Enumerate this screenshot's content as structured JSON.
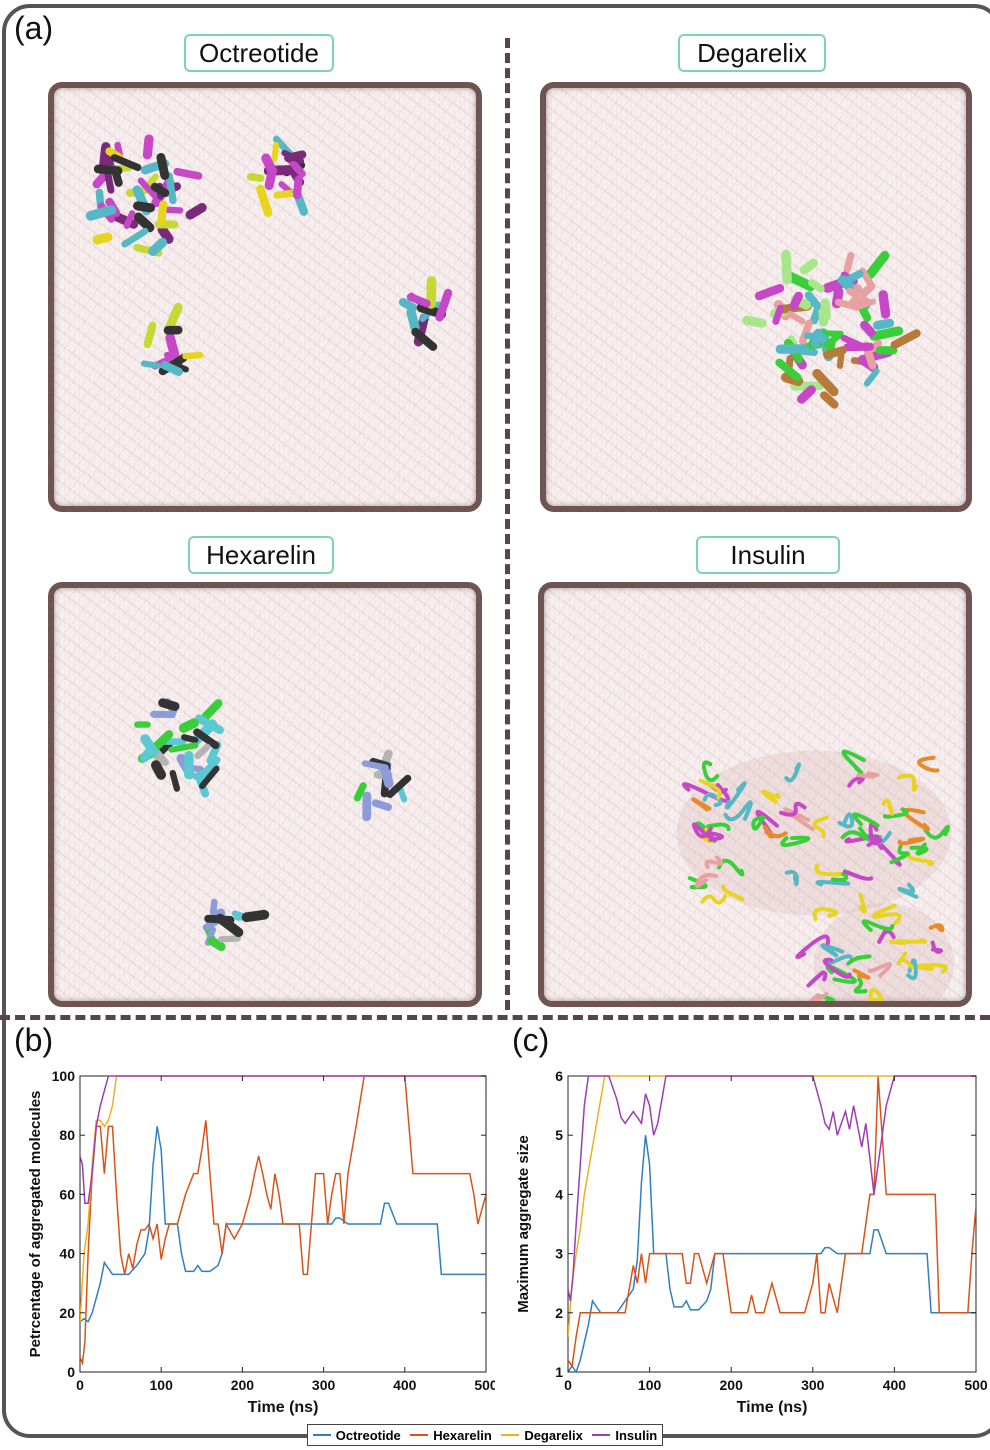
{
  "panel_letters": {
    "a": "(a)",
    "b": "(b)",
    "c": "(c)"
  },
  "simulations": [
    {
      "label": "Octreotide",
      "colors": [
        "#c6d832",
        "#7a2a7a",
        "#e6d420",
        "#55b8c4",
        "#333333",
        "#c648c6"
      ]
    },
    {
      "label": "Degarelix",
      "colors": [
        "#a8e68a",
        "#e8a1a1",
        "#55b8c4",
        "#c648c6",
        "#b87a3a",
        "#3acf3a"
      ]
    },
    {
      "label": "Hexarelin",
      "colors": [
        "#5cc8d4",
        "#3acf3a",
        "#333333",
        "#b4b4b4",
        "#8c9cd8"
      ]
    },
    {
      "label": "Insulin",
      "colors": [
        "#e6d420",
        "#3acf3a",
        "#e8a1a1",
        "#c648c6",
        "#e88a2a",
        "#55b8c4"
      ]
    }
  ],
  "legend": [
    {
      "name": "Octreotide",
      "color": "#2F7FC1"
    },
    {
      "name": "Hexarelin",
      "color": "#D95319"
    },
    {
      "name": "Degarelix",
      "color": "#EDB120"
    },
    {
      "name": "Insulin",
      "color": "#9B3EAF"
    }
  ],
  "chart_data": [
    {
      "type": "line",
      "panel": "(b)",
      "xlabel": "Time (ns)",
      "ylabel": "Petrcentage of aggregated molecules",
      "xlim": [
        0,
        500
      ],
      "ylim": [
        0,
        100
      ],
      "xticks": [
        "0",
        "100",
        "200",
        "300",
        "400",
        "500"
      ],
      "yticks": [
        "0",
        "20",
        "40",
        "60",
        "80",
        "100"
      ],
      "series": [
        {
          "name": "Octreotide",
          "color": "#2F7FC1",
          "x": [
            0,
            5,
            10,
            15,
            20,
            25,
            30,
            35,
            40,
            50,
            60,
            70,
            80,
            85,
            90,
            95,
            100,
            105,
            110,
            120,
            125,
            130,
            140,
            145,
            150,
            160,
            170,
            175,
            180,
            200,
            250,
            300,
            310,
            315,
            320,
            330,
            340,
            360,
            370,
            375,
            380,
            390,
            400,
            420,
            440,
            445,
            460,
            480,
            500
          ],
          "y": [
            17,
            18,
            17,
            20,
            25,
            30,
            37,
            35,
            33,
            33,
            33,
            36,
            40,
            48,
            70,
            83,
            75,
            50,
            50,
            50,
            40,
            34,
            34,
            36,
            34,
            34,
            36,
            40,
            50,
            50,
            50,
            50,
            50,
            52,
            52,
            50,
            50,
            50,
            50,
            57,
            57,
            50,
            50,
            50,
            50,
            33,
            33,
            33,
            33
          ]
        },
        {
          "name": "Hexarelin",
          "color": "#D95319",
          "x": [
            0,
            3,
            6,
            10,
            15,
            20,
            25,
            30,
            35,
            40,
            45,
            50,
            55,
            60,
            65,
            70,
            75,
            80,
            85,
            90,
            95,
            100,
            105,
            110,
            115,
            120,
            130,
            140,
            145,
            150,
            155,
            160,
            165,
            170,
            175,
            180,
            190,
            200,
            210,
            215,
            220,
            225,
            230,
            235,
            240,
            245,
            250,
            260,
            270,
            275,
            280,
            285,
            290,
            300,
            305,
            310,
            315,
            320,
            325,
            330,
            340,
            350,
            360,
            370,
            380,
            385,
            390,
            395,
            400,
            410,
            420,
            440,
            460,
            475,
            480,
            485,
            490,
            500
          ],
          "y": [
            5,
            3,
            10,
            40,
            67,
            83,
            83,
            67,
            83,
            83,
            60,
            40,
            33,
            40,
            35,
            43,
            48,
            48,
            50,
            45,
            50,
            38,
            45,
            50,
            50,
            50,
            60,
            67,
            67,
            75,
            85,
            67,
            50,
            50,
            40,
            50,
            45,
            50,
            60,
            67,
            73,
            67,
            60,
            55,
            67,
            60,
            50,
            50,
            50,
            33,
            33,
            50,
            67,
            67,
            50,
            60,
            67,
            67,
            50,
            67,
            83,
            100,
            100,
            100,
            100,
            100,
            100,
            100,
            100,
            67,
            67,
            67,
            67,
            67,
            67,
            60,
            50,
            60
          ]
        },
        {
          "name": "Degarelix",
          "color": "#EDB120",
          "x": [
            0,
            5,
            10,
            15,
            20,
            25,
            30,
            35,
            40,
            45,
            50,
            60,
            100,
            200,
            300,
            400,
            500
          ],
          "y": [
            17,
            40,
            50,
            70,
            85,
            85,
            83,
            85,
            90,
            100,
            100,
            100,
            100,
            100,
            100,
            100,
            100
          ]
        },
        {
          "name": "Insulin",
          "color": "#9B3EAF",
          "x": [
            0,
            3,
            6,
            10,
            15,
            20,
            25,
            30,
            35,
            40,
            45,
            50,
            100,
            200,
            300,
            400,
            500
          ],
          "y": [
            73,
            70,
            57,
            57,
            67,
            83,
            90,
            95,
            100,
            100,
            100,
            100,
            100,
            100,
            100,
            100,
            100
          ]
        }
      ]
    },
    {
      "type": "line",
      "panel": "(c)",
      "xlabel": "Time (ns)",
      "ylabel": "Maximum aggregate size",
      "xlim": [
        0,
        500
      ],
      "ylim": [
        1,
        6
      ],
      "xticks": [
        "0",
        "100",
        "200",
        "300",
        "400",
        "500"
      ],
      "yticks": [
        "1",
        "2",
        "3",
        "4",
        "5",
        "6"
      ],
      "series": [
        {
          "name": "Octreotide",
          "color": "#2F7FC1",
          "x": [
            0,
            5,
            10,
            15,
            20,
            25,
            30,
            35,
            40,
            50,
            60,
            70,
            80,
            85,
            90,
            95,
            100,
            105,
            110,
            120,
            125,
            130,
            140,
            145,
            150,
            160,
            170,
            175,
            180,
            200,
            250,
            300,
            310,
            315,
            320,
            330,
            340,
            360,
            370,
            375,
            380,
            390,
            400,
            420,
            440,
            445,
            460,
            480,
            500
          ],
          "y": [
            1,
            1.1,
            1,
            1.2,
            1.5,
            1.8,
            2.2,
            2.1,
            2,
            2,
            2,
            2.2,
            2.4,
            2.9,
            4.2,
            5,
            4.5,
            3,
            3,
            3,
            2.4,
            2.1,
            2.1,
            2.2,
            2.05,
            2.05,
            2.2,
            2.4,
            3,
            3,
            3,
            3,
            3,
            3.1,
            3.1,
            3,
            3,
            3,
            3,
            3.4,
            3.4,
            3,
            3,
            3,
            3,
            2,
            2,
            2,
            2
          ]
        },
        {
          "name": "Hexarelin",
          "color": "#D95319",
          "x": [
            0,
            5,
            10,
            15,
            20,
            25,
            30,
            40,
            50,
            60,
            70,
            80,
            85,
            90,
            95,
            100,
            110,
            120,
            130,
            140,
            145,
            150,
            155,
            160,
            170,
            180,
            190,
            200,
            220,
            225,
            230,
            240,
            250,
            260,
            270,
            280,
            290,
            300,
            305,
            310,
            315,
            320,
            330,
            340,
            350,
            360,
            370,
            375,
            380,
            390,
            400,
            410,
            420,
            440,
            450,
            455,
            460,
            480,
            490,
            495,
            500
          ],
          "y": [
            1.2,
            1.1,
            1.6,
            2,
            2,
            2,
            2,
            2,
            2,
            2,
            2,
            2.8,
            2.5,
            3,
            2.5,
            3,
            3,
            3,
            3,
            3,
            2.5,
            2.5,
            3,
            3,
            2.5,
            3,
            3,
            2,
            2,
            2.3,
            2,
            2,
            2.5,
            2,
            2,
            2,
            2,
            2.5,
            3,
            2,
            2,
            2.5,
            2,
            3,
            3,
            3,
            4,
            4,
            6,
            4,
            4,
            4,
            4,
            4,
            4,
            2,
            2,
            2,
            2,
            3,
            3.8
          ]
        },
        {
          "name": "Degarelix",
          "color": "#EDB120",
          "x": [
            0,
            5,
            10,
            15,
            20,
            25,
            30,
            35,
            40,
            45,
            50,
            60,
            100,
            200,
            300,
            400,
            500
          ],
          "y": [
            1.6,
            2.5,
            3,
            3.4,
            4,
            4.4,
            4.8,
            5.2,
            5.6,
            6,
            6,
            6,
            6,
            6,
            6,
            6,
            6
          ]
        },
        {
          "name": "Insulin",
          "color": "#9B3EAF",
          "x": [
            0,
            3,
            6,
            10,
            15,
            20,
            25,
            30,
            35,
            40,
            50,
            60,
            65,
            70,
            80,
            90,
            95,
            100,
            105,
            110,
            120,
            200,
            300,
            310,
            315,
            320,
            325,
            330,
            340,
            345,
            350,
            360,
            365,
            370,
            375,
            380,
            385,
            390,
            400,
            410,
            500
          ],
          "y": [
            2.4,
            2.2,
            2.6,
            3.5,
            4.5,
            5.5,
            6,
            6,
            6,
            6,
            6,
            5.6,
            5.3,
            5.2,
            5.4,
            5.2,
            5.7,
            5.5,
            5,
            5.2,
            6,
            6,
            6,
            5.5,
            5.2,
            5.1,
            5.4,
            5,
            5.4,
            5.1,
            5.5,
            4.8,
            5.2,
            4.6,
            4,
            4.5,
            5,
            5.5,
            6,
            6,
            6
          ]
        }
      ]
    }
  ]
}
